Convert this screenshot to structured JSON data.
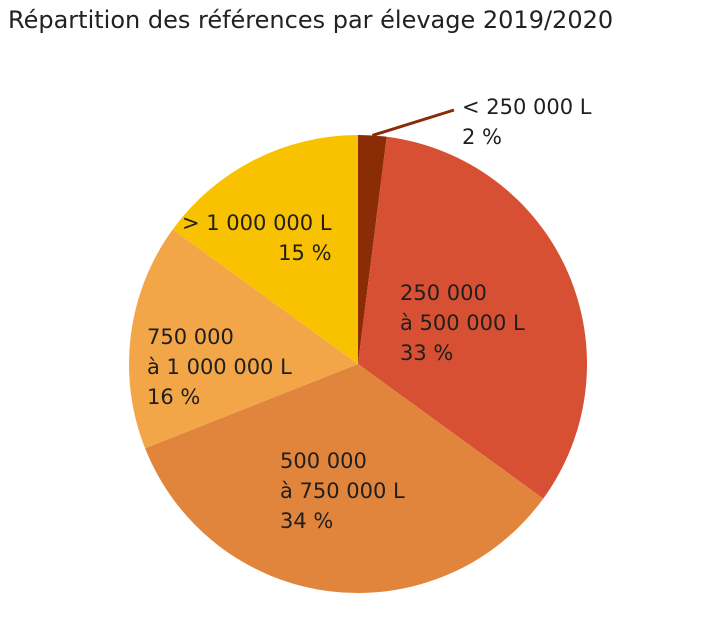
{
  "chart_data": {
    "type": "pie",
    "title": "Répartition des références par élevage 2019/2020",
    "start": "top",
    "direction": "clockwise",
    "slices": [
      {
        "label": [
          "< 250 000 L"
        ],
        "percent_label": "2 %",
        "value": 2,
        "color": "#8A2C05"
      },
      {
        "label": [
          "250 000",
          "à 500 000 L"
        ],
        "percent_label": "33 %",
        "value": 33,
        "color": "#D75033"
      },
      {
        "label": [
          "500 000",
          "à 750 000 L"
        ],
        "percent_label": "34 %",
        "value": 34,
        "color": "#E0853B"
      },
      {
        "label": [
          "750 000",
          "à 1 000 000 L"
        ],
        "percent_label": "16 %",
        "value": 16,
        "color": "#F2A647"
      },
      {
        "label": [
          "> 1 000 000 L"
        ],
        "percent_label": "15 %",
        "value": 15,
        "color": "#F9C200"
      }
    ]
  }
}
